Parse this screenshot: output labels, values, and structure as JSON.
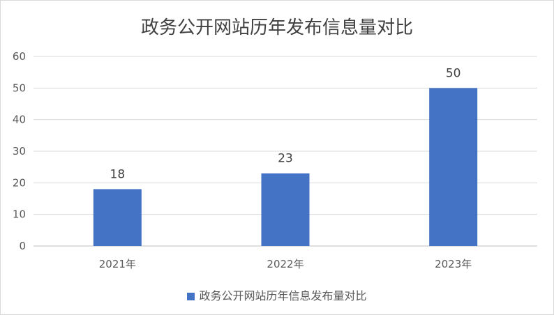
{
  "chart_data": {
    "type": "bar",
    "title": "政务公开网站历年发布信息量对比",
    "categories": [
      "2021年",
      "2022年",
      "2023年"
    ],
    "series": [
      {
        "name": "政务公开网站历年信息发布量对比",
        "values": [
          18,
          23,
          50
        ]
      }
    ],
    "ylim": [
      0,
      60
    ],
    "yticks": [
      0,
      10,
      20,
      30,
      40,
      50,
      60
    ],
    "grid": true,
    "legend_position": "bottom",
    "data_labels": true,
    "colors": {
      "bar": "#4472c4",
      "grid": "#d9d9d9",
      "axis": "#bfbfbf"
    }
  }
}
